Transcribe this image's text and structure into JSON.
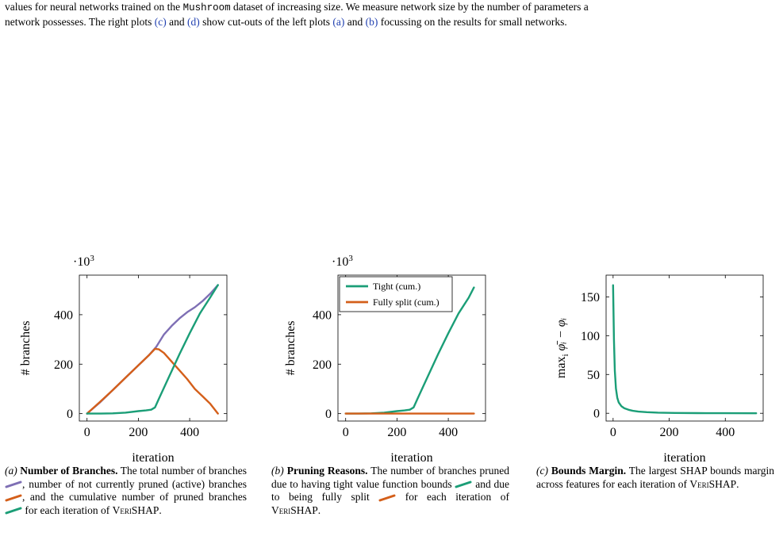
{
  "top_caption": {
    "line1_pre": "values for neural networks trained on the ",
    "dataset": "Mushroom",
    "line1_post": " dataset of increasing size. We measure network size by the number of parameters a",
    "line2_pre": "network possesses. The right plots ",
    "ref_c": "(c)",
    "and1": " and ",
    "ref_d": "(d)",
    "line2_mid": " show cut-outs of the left plots ",
    "ref_a": "(a)",
    "and2": " and ",
    "ref_b": "(b)",
    "line2_post": " focussing on the results for small networks."
  },
  "colors": {
    "purple": "#7e6fb4",
    "orange": "#d45f1a",
    "green": "#1b9e77"
  },
  "chart_data": [
    {
      "type": "line",
      "ylabel": "# branches",
      "xlabel": "iteration",
      "y_multiplier": "·10",
      "y_multiplier_exp": "3",
      "xlim": [
        -30,
        545
      ],
      "ylim": [
        -30,
        560
      ],
      "xticks": [
        0,
        200,
        400
      ],
      "yticks": [
        0,
        200,
        400
      ],
      "xtick_labels": [
        "0",
        "200",
        "400"
      ],
      "ytick_labels": [
        "0",
        "200",
        "400"
      ],
      "series": [
        {
          "color": "#7e6fb4",
          "x": [
            0,
            50,
            100,
            150,
            200,
            240,
            270,
            300,
            330,
            360,
            390,
            420,
            450,
            480,
            510
          ],
          "y": [
            0,
            45,
            95,
            145,
            195,
            235,
            270,
            320,
            355,
            385,
            410,
            430,
            455,
            485,
            520
          ]
        },
        {
          "color": "#d45f1a",
          "x": [
            0,
            50,
            100,
            150,
            200,
            240,
            265,
            280,
            300,
            330,
            360,
            390,
            420,
            450,
            480,
            510
          ],
          "y": [
            0,
            47,
            95,
            145,
            195,
            235,
            262,
            260,
            245,
            210,
            175,
            140,
            100,
            70,
            40,
            0
          ]
        },
        {
          "color": "#1b9e77",
          "x": [
            0,
            50,
            100,
            150,
            200,
            230,
            250,
            265,
            280,
            320,
            360,
            400,
            440,
            480,
            510
          ],
          "y": [
            0,
            0,
            1,
            4,
            10,
            13,
            16,
            25,
            60,
            150,
            240,
            325,
            405,
            470,
            520
          ]
        }
      ]
    },
    {
      "type": "line",
      "ylabel": "# branches",
      "xlabel": "iteration",
      "y_multiplier": "·10",
      "y_multiplier_exp": "3",
      "xlim": [
        -30,
        545
      ],
      "ylim": [
        -30,
        560
      ],
      "xticks": [
        0,
        200,
        400
      ],
      "yticks": [
        0,
        200,
        400
      ],
      "xtick_labels": [
        "0",
        "200",
        "400"
      ],
      "ytick_labels": [
        "0",
        "200",
        "400"
      ],
      "legend": "top-left",
      "series": [
        {
          "name": "Tight (cum.)",
          "color": "#1b9e77",
          "x": [
            0,
            50,
            100,
            150,
            200,
            230,
            250,
            265,
            280,
            320,
            360,
            400,
            440,
            480,
            500
          ],
          "y": [
            0,
            0,
            1,
            4,
            10,
            13,
            16,
            25,
            60,
            150,
            240,
            325,
            405,
            470,
            510
          ]
        },
        {
          "name": "Fully split (cum.)",
          "color": "#d45f1a",
          "x": [
            0,
            500
          ],
          "y": [
            0,
            0
          ]
        }
      ]
    },
    {
      "type": "line",
      "ylabel_main": "max",
      "ylabel_sub": "i",
      "ylabel_rest": " φ̄ᵢ − φᵢ",
      "xlabel": "iteration",
      "xlim": [
        -25,
        535
      ],
      "ylim": [
        -10,
        178
      ],
      "xticks": [
        0,
        200,
        400
      ],
      "yticks": [
        0,
        50,
        100,
        150
      ],
      "xtick_labels": [
        "0",
        "200",
        "400"
      ],
      "ytick_labels": [
        "0",
        "50",
        "100",
        "150"
      ],
      "series": [
        {
          "color": "#1b9e77",
          "x": [
            0,
            3,
            6,
            10,
            15,
            20,
            30,
            40,
            55,
            70,
            90,
            120,
            160,
            220,
            300,
            400,
            510
          ],
          "y": [
            165,
            95,
            55,
            32,
            20,
            14,
            9,
            6.5,
            4.5,
            3.2,
            2.2,
            1.4,
            0.8,
            0.4,
            0.2,
            0.1,
            0.05
          ]
        }
      ]
    }
  ],
  "subcaptions": {
    "a": {
      "label": "(a)",
      "title": "Number of Branches.",
      "t1": " The total number of branches ",
      "t2": ", number of not currently pruned (active) branches ",
      "t3": ", and the cumulative number of pruned branches ",
      "t4": " for each iteration of ",
      "method": "VeriSHAP",
      "end": "."
    },
    "b": {
      "label": "(b)",
      "title": "Pruning Reasons.",
      "t1": " The number of branches pruned due to having tight value function bounds ",
      "t2": " and due to being fully split ",
      "t3": " for each iteration of ",
      "method": "VeriSHAP",
      "end": "."
    },
    "c": {
      "label": "(c)",
      "title": "Bounds Margin.",
      "t1": " The largest SHAP bounds margin across features for each iteration of ",
      "method": "VeriSHAP",
      "end": "."
    }
  }
}
